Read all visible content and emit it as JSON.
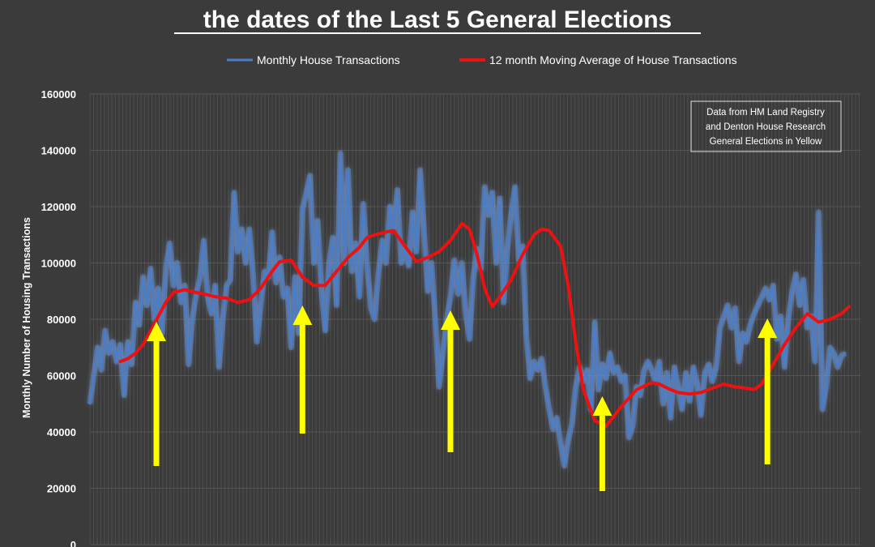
{
  "chart_data": {
    "type": "line",
    "title": "the dates of the Last  5 General Elections",
    "xlabel": "",
    "ylabel": "Monthly Number of Housing Transactions",
    "ylim": [
      0,
      160000
    ],
    "yticks": [
      "0",
      "20000",
      "40000",
      "60000",
      "80000",
      "100000",
      "120000",
      "140000",
      "160000"
    ],
    "grid": true,
    "legend_position": "top",
    "x_unit": "month index",
    "series": [
      {
        "name": "Monthly House Transactions",
        "color": "#4a7ec8",
        "x": [
          0,
          2,
          4,
          6,
          8,
          10,
          12,
          14,
          16,
          18,
          20,
          22,
          24,
          26,
          28,
          30,
          32,
          34,
          36,
          38,
          40,
          42,
          44,
          46,
          48,
          50,
          52,
          54,
          56,
          58,
          60,
          62,
          64,
          66,
          68,
          70,
          72,
          74,
          76,
          78,
          80,
          82,
          84,
          86,
          88,
          90,
          92,
          94,
          96,
          98,
          100,
          102,
          104,
          106,
          108,
          110,
          112,
          114,
          116,
          118,
          120,
          122,
          124,
          126,
          128,
          130,
          132,
          134,
          136,
          138,
          140,
          142,
          144,
          146,
          148,
          150,
          152,
          154,
          156,
          158,
          160,
          162,
          164,
          166,
          168,
          170,
          172,
          174,
          176,
          178,
          180,
          182,
          184,
          186,
          188,
          190,
          192,
          194,
          196,
          198,
          200,
          202,
          204,
          206,
          208,
          210,
          212,
          214,
          216,
          218,
          220,
          222,
          224,
          226,
          228,
          230,
          232,
          234,
          236,
          238,
          240,
          242,
          244,
          246,
          248,
          250,
          252,
          254,
          256,
          258,
          260,
          262,
          264,
          266,
          268,
          270,
          272,
          274,
          276,
          278,
          280,
          282,
          284,
          286,
          288,
          290,
          292,
          294,
          296,
          298,
          300,
          302,
          304,
          306,
          308,
          310,
          312,
          314,
          316,
          318,
          320,
          322,
          324,
          326,
          328,
          330,
          332,
          334,
          336,
          338,
          340,
          342,
          344,
          346,
          348,
          350,
          352,
          354,
          356,
          358,
          360,
          362,
          364,
          366,
          368,
          370,
          372,
          374,
          376,
          378,
          380,
          382,
          384,
          386,
          388,
          390,
          392,
          394,
          396,
          398
        ],
        "values": [
          50000,
          60000,
          70000,
          62000,
          76000,
          68000,
          72000,
          65000,
          71000,
          53000,
          72000,
          64000,
          86000,
          78000,
          95000,
          85000,
          98000,
          80000,
          91000,
          75000,
          98000,
          107000,
          92000,
          100000,
          86000,
          92000,
          64000,
          80000,
          89000,
          95000,
          108000,
          88000,
          82000,
          92000,
          63000,
          80000,
          92000,
          94000,
          125000,
          104000,
          112000,
          100000,
          112000,
          96000,
          72000,
          85000,
          97000,
          95000,
          111000,
          93000,
          102000,
          88000,
          91000,
          70000,
          95000,
          75000,
          119000,
          125000,
          131000,
          100000,
          115000,
          90000,
          76000,
          100000,
          109000,
          85000,
          139000,
          100000,
          133000,
          97000,
          107000,
          88000,
          121000,
          100000,
          84000,
          80000,
          96000,
          108000,
          100000,
          120000,
          112000,
          126000,
          100000,
          105000,
          99000,
          118000,
          104000,
          133000,
          112000,
          90000,
          100000,
          80000,
          56000,
          68000,
          80000,
          88000,
          101000,
          89000,
          100000,
          82000,
          73000,
          95000,
          105000,
          98000,
          127000,
          117000,
          125000,
          100000,
          123000,
          86000,
          105000,
          118000,
          127000,
          101000,
          106000,
          74000,
          59000,
          65000,
          62000,
          66000,
          56000,
          48000,
          41000,
          45000,
          36000,
          28000,
          37000,
          43000,
          56000,
          63000,
          58000,
          62000,
          48000,
          79000,
          55000,
          64000,
          59000,
          68000,
          61000,
          63000,
          58000,
          60000,
          38000,
          42000,
          56000,
          53000,
          62000,
          65000,
          62000,
          58000,
          65000,
          50000,
          61000,
          45000,
          63000,
          56000,
          48000,
          61000,
          51000,
          63000,
          57000,
          46000,
          61000,
          64000,
          58000,
          63000,
          77000,
          81000,
          85000,
          77000,
          84000,
          65000,
          75000,
          72000,
          78000,
          82000,
          85000,
          88000,
          91000,
          87000,
          92000,
          73000,
          81000,
          63000,
          80000,
          90000,
          96000,
          85000,
          94000,
          77000,
          81000,
          65000,
          118000,
          48000,
          56000,
          70000,
          68000,
          63000,
          67000,
          68000
        ]
      },
      {
        "name": "12 month Moving Average of House Transactions",
        "color": "#ee1111",
        "x": [
          16,
          20,
          24,
          28,
          32,
          36,
          40,
          44,
          50,
          56,
          60,
          66,
          72,
          78,
          84,
          90,
          96,
          100,
          106,
          112,
          118,
          124,
          130,
          136,
          142,
          146,
          150,
          156,
          160,
          166,
          172,
          178,
          184,
          190,
          196,
          200,
          204,
          208,
          212,
          216,
          222,
          228,
          234,
          238,
          242,
          248,
          252,
          256,
          260,
          266,
          272,
          280,
          288,
          296,
          300,
          306,
          310,
          316,
          322,
          328,
          334,
          340,
          346,
          350,
          354,
          360,
          366,
          372,
          378,
          384,
          390,
          396,
          400
        ],
        "values": [
          65000,
          66000,
          68000,
          71000,
          76000,
          81000,
          86000,
          89500,
          90500,
          89500,
          89000,
          88000,
          87500,
          86000,
          87000,
          91000,
          97000,
          100500,
          101000,
          95000,
          92000,
          92000,
          97000,
          102000,
          105500,
          109000,
          110000,
          111000,
          111500,
          106000,
          100500,
          102000,
          104000,
          108000,
          114000,
          112000,
          103000,
          91000,
          84500,
          88000,
          94000,
          103000,
          110000,
          112000,
          111500,
          106000,
          92000,
          72000,
          55000,
          44000,
          42000,
          49000,
          55000,
          57500,
          57000,
          55000,
          54000,
          53500,
          54000,
          55500,
          57000,
          56000,
          55500,
          55000,
          57000,
          64000,
          71000,
          77000,
          82000,
          79000,
          80000,
          82000,
          84500
        ]
      }
    ],
    "markers": {
      "color": "#ffff00",
      "note": "General Elections shown as yellow arrows (x = month index)",
      "x": [
        35,
        112,
        190,
        270,
        357
      ]
    }
  },
  "info_box": {
    "line1": "Data from HM Land Registry",
    "line2": "and Denton House Research",
    "line3": "General Elections in Yellow"
  }
}
